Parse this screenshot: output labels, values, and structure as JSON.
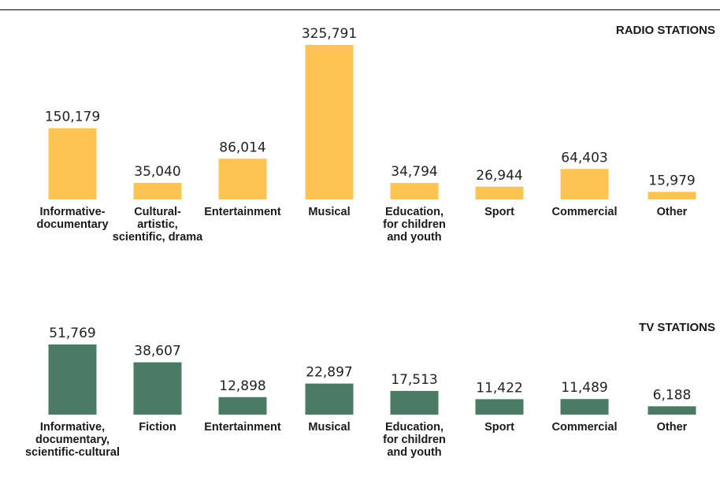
{
  "chart_data": [
    {
      "type": "bar",
      "title": "RADIO STATIONS",
      "categories": [
        [
          "Informative-",
          "documentary"
        ],
        [
          "Cultural-",
          "artistic,",
          "scientific, drama"
        ],
        [
          "Entertainment"
        ],
        [
          "Musical"
        ],
        [
          "Education,",
          "for children",
          "and youth"
        ],
        [
          "Sport"
        ],
        [
          "Commercial"
        ],
        [
          "Other"
        ]
      ],
      "values": [
        150179,
        35040,
        86014,
        325791,
        34794,
        26944,
        64403,
        15979
      ],
      "value_labels": [
        "150,179",
        "35,040",
        "86,014",
        "325,791",
        "34,794",
        "26,944",
        "64,403",
        "15,979"
      ],
      "color": "#FDC453"
    },
    {
      "type": "bar",
      "title": "TV STATIONS",
      "categories": [
        [
          "Informative,",
          "documentary,",
          "scientific-cultural"
        ],
        [
          "Fiction"
        ],
        [
          "Entertainment"
        ],
        [
          "Musical"
        ],
        [
          "Education,",
          "for children",
          "and youth"
        ],
        [
          "Sport"
        ],
        [
          "Commercial"
        ],
        [
          "Other"
        ]
      ],
      "values": [
        51769,
        38607,
        12898,
        22897,
        17513,
        11422,
        11489,
        6188
      ],
      "value_labels": [
        "51,769",
        "38,607",
        "12,898",
        "22,897",
        "17,513",
        "11,422",
        "11,489",
        "6,188"
      ],
      "color": "#4B7A65"
    }
  ]
}
